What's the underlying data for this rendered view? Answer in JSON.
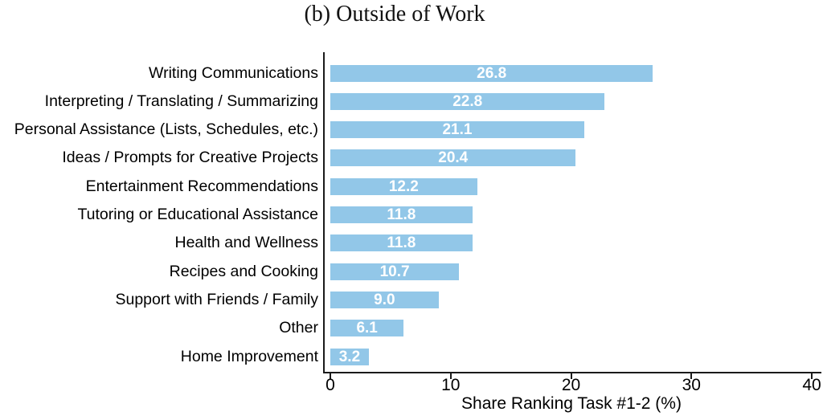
{
  "chart_data": {
    "type": "bar",
    "orientation": "horizontal",
    "title": "(b) Outside of Work",
    "xlabel": "Share Ranking Task #1-2 (%)",
    "xlim": [
      0,
      40
    ],
    "xticks": [
      "0",
      "10",
      "20",
      "30",
      "40"
    ],
    "grid": false,
    "legend": "none",
    "bar_color": "#92c7e8",
    "bar_value_label_color": "#ffffff",
    "axis_color": "#1a1a1a",
    "categories": [
      "Writing Communications",
      "Interpreting / Translating / Summarizing",
      "Personal Assistance (Lists, Schedules, etc.)",
      "Ideas / Prompts for Creative Projects",
      "Entertainment Recommendations",
      "Tutoring or Educational Assistance",
      "Health and Wellness",
      "Recipes and Cooking",
      "Support with Friends / Family",
      "Other",
      "Home Improvement"
    ],
    "values": [
      26.8,
      22.8,
      21.1,
      20.4,
      12.2,
      11.8,
      11.8,
      10.7,
      9.0,
      6.1,
      3.2
    ],
    "value_labels": [
      "26.8",
      "22.8",
      "21.1",
      "20.4",
      "12.2",
      "11.8",
      "11.8",
      "10.7",
      "9.0",
      "6.1",
      "3.2"
    ]
  }
}
